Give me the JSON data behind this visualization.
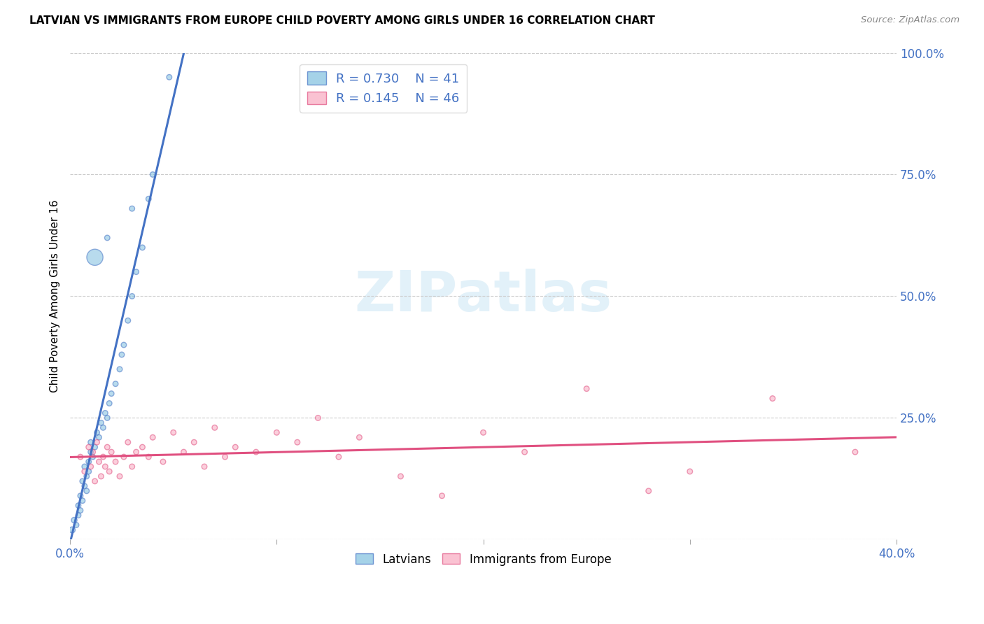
{
  "title": "LATVIAN VS IMMIGRANTS FROM EUROPE CHILD POVERTY AMONG GIRLS UNDER 16 CORRELATION CHART",
  "source": "Source: ZipAtlas.com",
  "ylabel": "Child Poverty Among Girls Under 16",
  "xmin": 0.0,
  "xmax": 0.4,
  "ymin": 0.0,
  "ymax": 1.0,
  "xtick_positions": [
    0.0,
    0.1,
    0.2,
    0.3,
    0.4
  ],
  "xtick_labels_show": [
    "0.0%",
    "",
    "",
    "",
    "40.0%"
  ],
  "ytick_positions": [
    0.0,
    0.25,
    0.5,
    0.75,
    1.0
  ],
  "ytick_labels": [
    "",
    "25.0%",
    "50.0%",
    "75.0%",
    "100.0%"
  ],
  "latvian_color": "#7fbfdf",
  "immigrant_color": "#f9a8c0",
  "trendline_latvian_color": "#4472c4",
  "trendline_immigrant_color": "#e05080",
  "legend_latvian_R": "0.730",
  "legend_latvian_N": "41",
  "legend_immigrant_R": "0.145",
  "legend_immigrant_N": "46",
  "watermark_text": "ZIPatlas",
  "latvian_x": [
    0.001,
    0.002,
    0.003,
    0.004,
    0.004,
    0.005,
    0.005,
    0.006,
    0.006,
    0.007,
    0.007,
    0.008,
    0.008,
    0.009,
    0.009,
    0.01,
    0.01,
    0.011,
    0.012,
    0.013,
    0.014,
    0.015,
    0.016,
    0.017,
    0.018,
    0.019,
    0.02,
    0.022,
    0.024,
    0.025,
    0.026,
    0.028,
    0.03,
    0.032,
    0.035,
    0.038,
    0.04,
    0.012,
    0.018,
    0.03,
    0.048
  ],
  "latvian_y": [
    0.02,
    0.04,
    0.03,
    0.05,
    0.07,
    0.06,
    0.09,
    0.08,
    0.12,
    0.11,
    0.15,
    0.13,
    0.1,
    0.16,
    0.14,
    0.18,
    0.2,
    0.17,
    0.19,
    0.22,
    0.21,
    0.24,
    0.23,
    0.26,
    0.25,
    0.28,
    0.3,
    0.32,
    0.35,
    0.38,
    0.4,
    0.45,
    0.5,
    0.55,
    0.6,
    0.7,
    0.75,
    0.58,
    0.62,
    0.68,
    0.95
  ],
  "latvian_sizes": [
    40,
    35,
    30,
    30,
    30,
    30,
    30,
    30,
    30,
    30,
    30,
    30,
    30,
    30,
    30,
    30,
    30,
    30,
    30,
    30,
    30,
    30,
    30,
    30,
    30,
    30,
    30,
    30,
    30,
    30,
    30,
    30,
    30,
    30,
    30,
    30,
    30,
    280,
    30,
    30,
    30
  ],
  "immigrant_x": [
    0.005,
    0.007,
    0.009,
    0.01,
    0.011,
    0.012,
    0.013,
    0.014,
    0.015,
    0.016,
    0.017,
    0.018,
    0.019,
    0.02,
    0.022,
    0.024,
    0.026,
    0.028,
    0.03,
    0.032,
    0.035,
    0.038,
    0.04,
    0.045,
    0.05,
    0.055,
    0.06,
    0.065,
    0.07,
    0.075,
    0.08,
    0.09,
    0.1,
    0.11,
    0.12,
    0.13,
    0.14,
    0.16,
    0.18,
    0.2,
    0.22,
    0.25,
    0.28,
    0.3,
    0.34,
    0.38
  ],
  "immigrant_y": [
    0.17,
    0.14,
    0.19,
    0.15,
    0.18,
    0.12,
    0.2,
    0.16,
    0.13,
    0.17,
    0.15,
    0.19,
    0.14,
    0.18,
    0.16,
    0.13,
    0.17,
    0.2,
    0.15,
    0.18,
    0.19,
    0.17,
    0.21,
    0.16,
    0.22,
    0.18,
    0.2,
    0.15,
    0.23,
    0.17,
    0.19,
    0.18,
    0.22,
    0.2,
    0.25,
    0.17,
    0.21,
    0.13,
    0.09,
    0.22,
    0.18,
    0.31,
    0.1,
    0.14,
    0.29,
    0.18
  ],
  "immigrant_sizes": [
    30,
    30,
    30,
    30,
    30,
    30,
    30,
    30,
    30,
    30,
    30,
    30,
    30,
    30,
    30,
    30,
    30,
    30,
    30,
    30,
    30,
    30,
    30,
    30,
    30,
    30,
    30,
    30,
    30,
    30,
    30,
    30,
    30,
    30,
    30,
    30,
    30,
    30,
    30,
    30,
    30,
    30,
    30,
    30,
    30,
    30
  ]
}
